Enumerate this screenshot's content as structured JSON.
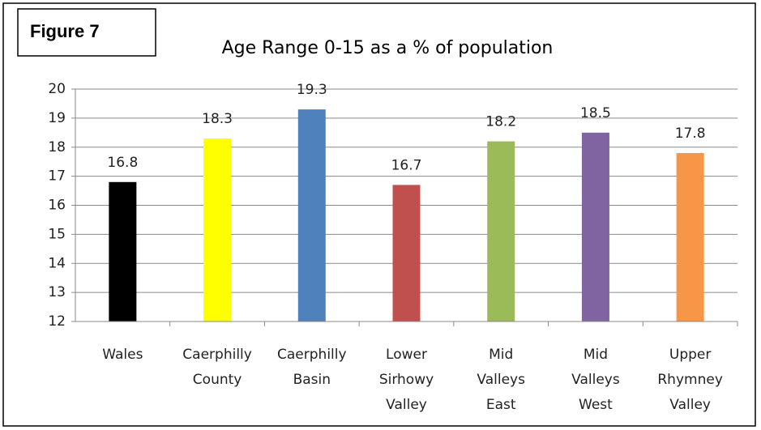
{
  "figure_label": "Figure 7",
  "chart_data": {
    "type": "bar",
    "title": "Age Range 0-15 as a % of population",
    "categories": [
      "Wales",
      "Caerphilly County",
      "Caerphilly Basin",
      "Lower Sirhowy Valley",
      "Mid Valleys East",
      "Mid Valleys West",
      "Upper Rhymney Valley"
    ],
    "values": [
      16.8,
      18.3,
      19.3,
      16.7,
      18.2,
      18.5,
      17.8
    ],
    "colors": [
      "#000000",
      "#ffff00",
      "#4f81bd",
      "#c0504d",
      "#9bbb59",
      "#8064a2",
      "#f79646"
    ],
    "ylim": [
      12,
      20
    ],
    "yticks": [
      12,
      13,
      14,
      15,
      16,
      17,
      18,
      19,
      20
    ],
    "grid": true
  }
}
